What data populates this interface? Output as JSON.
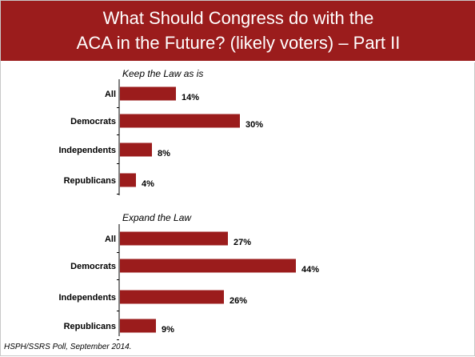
{
  "slide": {
    "title_line1": "What Should Congress do with the",
    "title_line2": "ACA in the Future? (likely voters) – Part II",
    "source": "HSPH/SSRS Poll, September 2014."
  },
  "colors": {
    "header_bg": "#9b1c1c",
    "bar": "#9b1c1c",
    "axis": "#000000"
  },
  "chart_data": [
    {
      "type": "bar",
      "orientation": "horizontal",
      "title": "Keep the Law as is",
      "categories": [
        "All",
        "Democrats",
        "Independents",
        "Republicans"
      ],
      "values": [
        14,
        30,
        8,
        4
      ],
      "value_labels": [
        "14%",
        "30%",
        "8%",
        "4%"
      ],
      "unit": "%",
      "xlim": [
        0,
        50
      ]
    },
    {
      "type": "bar",
      "orientation": "horizontal",
      "title": "Expand the Law",
      "categories": [
        "All",
        "Democrats",
        "Independents",
        "Republicans"
      ],
      "values": [
        27,
        44,
        26,
        9
      ],
      "value_labels": [
        "27%",
        "44%",
        "26%",
        "9%"
      ],
      "unit": "%",
      "xlim": [
        0,
        50
      ]
    }
  ]
}
